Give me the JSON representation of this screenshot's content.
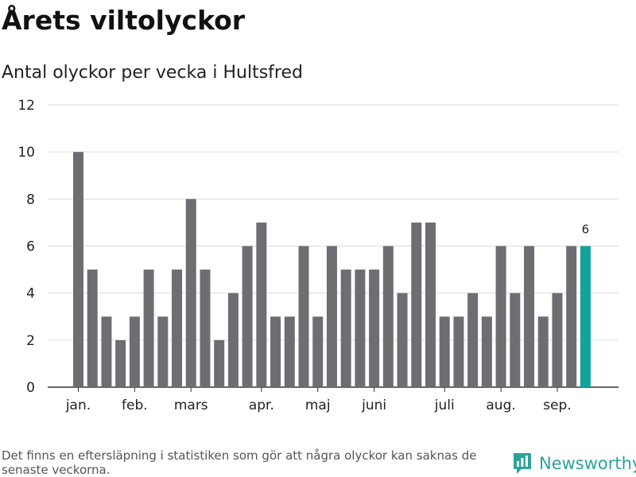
{
  "title": "Årets viltolyckor",
  "subtitle": "Antal olyckor per vecka i Hultsfred",
  "footnote": "Det finns en eftersläpning i statistiken som gör att några olyckor kan saknas de senaste veckorna.",
  "brand": {
    "name": "Newsworthy",
    "icon": "newsworthy-logo-icon",
    "color": "#2ba39a"
  },
  "chart_data": {
    "type": "bar",
    "title": "Antal olyckor per vecka i Hultsfred",
    "xlabel": "",
    "ylabel": "",
    "ylim": [
      0,
      12
    ],
    "yticks": [
      0,
      2,
      4,
      6,
      8,
      10,
      12
    ],
    "grid": true,
    "colors": {
      "bar": "#6e6d71",
      "highlight": "#12a39a"
    },
    "values": [
      10,
      5,
      3,
      2,
      3,
      5,
      3,
      5,
      8,
      5,
      2,
      4,
      6,
      7,
      3,
      3,
      6,
      3,
      6,
      5,
      5,
      5,
      6,
      4,
      7,
      7,
      3,
      3,
      4,
      3,
      6,
      4,
      6,
      3,
      4,
      6,
      6
    ],
    "highlight_index": 36,
    "data_labels": [
      {
        "index": 36,
        "text": "6"
      }
    ],
    "month_labels": [
      {
        "label": "jan.",
        "bar_index": 0
      },
      {
        "label": "feb.",
        "bar_index": 4
      },
      {
        "label": "mars",
        "bar_index": 8
      },
      {
        "label": "apr.",
        "bar_index": 13
      },
      {
        "label": "maj",
        "bar_index": 17
      },
      {
        "label": "juni",
        "bar_index": 21
      },
      {
        "label": "juli",
        "bar_index": 26
      },
      {
        "label": "aug.",
        "bar_index": 30
      },
      {
        "label": "sep.",
        "bar_index": 34
      }
    ]
  }
}
